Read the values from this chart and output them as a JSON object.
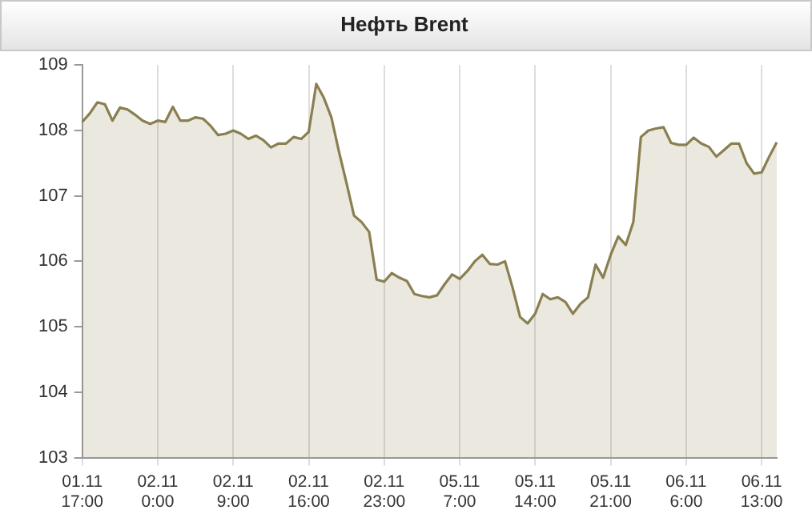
{
  "chart_data": {
    "type": "area",
    "title": "Нефть Brent",
    "categories": [
      "01.11\n17:00",
      null,
      null,
      null,
      null,
      null,
      null,
      null,
      null,
      null,
      "02.11\n0:00",
      null,
      null,
      null,
      null,
      null,
      null,
      null,
      null,
      null,
      "02.11\n9:00",
      null,
      null,
      null,
      null,
      null,
      null,
      null,
      null,
      null,
      "02.11\n16:00",
      null,
      null,
      null,
      null,
      null,
      null,
      null,
      null,
      null,
      "02.11\n23:00",
      null,
      null,
      null,
      null,
      null,
      null,
      null,
      null,
      null,
      "05.11\n7:00",
      null,
      null,
      null,
      null,
      null,
      null,
      null,
      null,
      null,
      "05.11\n14:00",
      null,
      null,
      null,
      null,
      null,
      null,
      null,
      null,
      null,
      "05.11\n21:00",
      null,
      null,
      null,
      null,
      null,
      null,
      null,
      null,
      null,
      "06.11\n6:00",
      null,
      null,
      null,
      null,
      null,
      null,
      null,
      null,
      null,
      "06.11\n13:00",
      null,
      null
    ],
    "series": [
      {
        "color": "#8a7f50",
        "values": [
          108.13,
          108.26,
          108.43,
          108.4,
          108.15,
          108.35,
          108.32,
          108.24,
          108.15,
          108.1,
          108.15,
          108.13,
          108.36,
          108.15,
          108.15,
          108.2,
          108.18,
          108.07,
          107.93,
          107.95,
          108.0,
          107.95,
          107.87,
          107.92,
          107.85,
          107.74,
          107.8,
          107.8,
          107.9,
          107.87,
          107.98,
          108.71,
          108.5,
          108.2,
          107.68,
          107.2,
          106.7,
          106.6,
          106.45,
          105.72,
          105.69,
          105.82,
          105.75,
          105.7,
          105.5,
          105.47,
          105.45,
          105.48,
          105.65,
          105.8,
          105.73,
          105.85,
          106.0,
          106.1,
          105.96,
          105.95,
          106.0,
          105.6,
          105.15,
          105.05,
          105.2,
          105.5,
          105.42,
          105.45,
          105.38,
          105.2,
          105.35,
          105.45,
          105.95,
          105.75,
          106.1,
          106.38,
          106.25,
          106.6,
          107.9,
          108.0,
          108.03,
          108.05,
          107.81,
          107.78,
          107.78,
          107.89,
          107.8,
          107.75,
          107.6,
          107.7,
          107.8,
          107.8,
          107.5,
          107.34,
          107.36,
          107.6,
          107.82
        ]
      }
    ],
    "ylim": [
      103,
      109
    ],
    "yticks": [
      103,
      104,
      105,
      106,
      107,
      108,
      109
    ],
    "grid": "x",
    "legend": false
  }
}
